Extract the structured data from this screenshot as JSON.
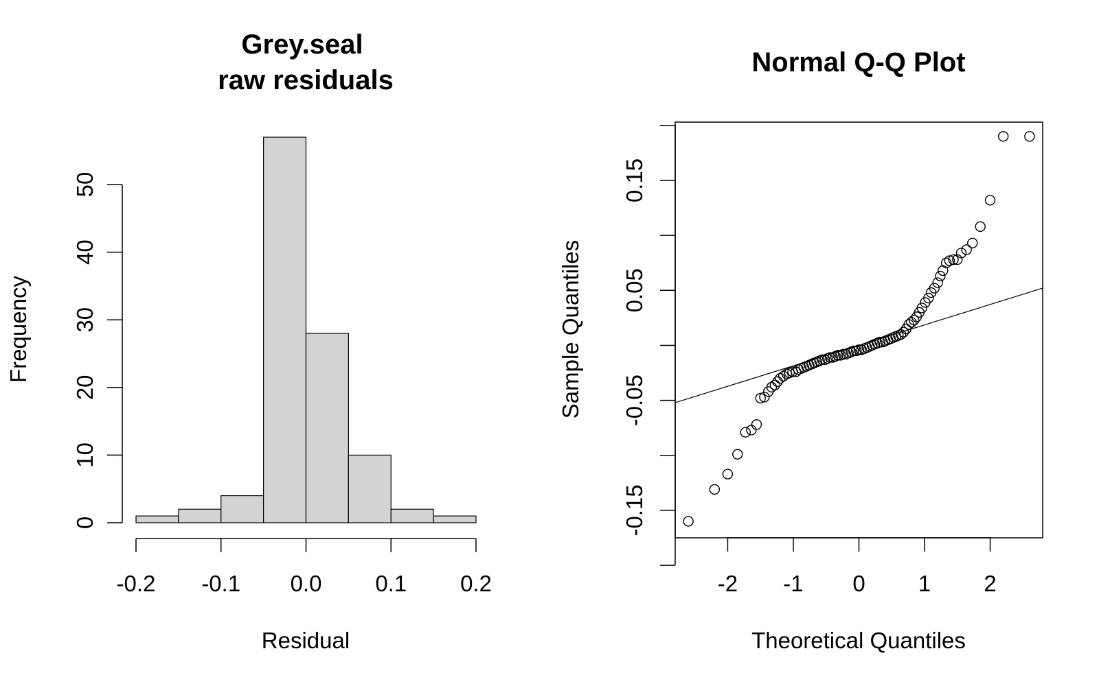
{
  "chart_data": [
    {
      "type": "bar",
      "title_lines": [
        "Grey.seal",
        "raw residuals"
      ],
      "xlabel": "Residual",
      "ylabel": "Frequency",
      "bins": [
        {
          "from": -0.2,
          "to": -0.15,
          "count": 1
        },
        {
          "from": -0.15,
          "to": -0.1,
          "count": 2
        },
        {
          "from": -0.1,
          "to": -0.05,
          "count": 4
        },
        {
          "from": -0.05,
          "to": 0.0,
          "count": 57
        },
        {
          "from": 0.0,
          "to": 0.05,
          "count": 28
        },
        {
          "from": 0.05,
          "to": 0.1,
          "count": 10
        },
        {
          "from": 0.1,
          "to": 0.15,
          "count": 2
        },
        {
          "from": 0.15,
          "to": 0.2,
          "count": 1
        }
      ],
      "xlim": [
        -0.2,
        0.2
      ],
      "ylim": [
        0,
        57
      ],
      "xticks": [
        "-0.2",
        "-0.1",
        "0.0",
        "0.1",
        "0.2"
      ],
      "yticks": [
        "0",
        "10",
        "20",
        "30",
        "40",
        "50"
      ],
      "grid": false
    },
    {
      "type": "scatter",
      "title": "Normal Q-Q Plot",
      "xlabel": "Theoretical Quantiles",
      "ylabel": "Sample Quantiles",
      "xlim": [
        -2.8,
        2.8
      ],
      "ylim": [
        -0.175,
        0.203
      ],
      "xticks": [
        "-2",
        "-1",
        "0",
        "1",
        "2"
      ],
      "yticks": [
        "-0.15",
        "-0.05",
        "0.05",
        "0.15"
      ],
      "grid": false,
      "reference_line": {
        "intercept": 0.0,
        "slope": 0.0186
      },
      "points": {
        "x": [
          -2.6,
          -2.2,
          -2.0,
          -1.85,
          -1.73,
          -1.64,
          -1.56,
          -1.5,
          -1.44,
          -1.38,
          -1.33,
          -1.28,
          -1.24,
          -1.2,
          -1.15,
          -1.1,
          -1.06,
          -1.01,
          -0.96,
          -0.92,
          -0.88,
          -0.84,
          -0.8,
          -0.76,
          -0.72,
          -0.68,
          -0.64,
          -0.6,
          -0.56,
          -0.52,
          -0.48,
          -0.44,
          -0.4,
          -0.36,
          -0.32,
          -0.28,
          -0.24,
          -0.2,
          -0.16,
          -0.12,
          -0.08,
          -0.04,
          0.0,
          0.04,
          0.08,
          0.12,
          0.16,
          0.2,
          0.24,
          0.28,
          0.32,
          0.36,
          0.4,
          0.44,
          0.48,
          0.52,
          0.56,
          0.6,
          0.64,
          0.68,
          0.72,
          0.76,
          0.8,
          0.84,
          0.88,
          0.92,
          0.96,
          1.01,
          1.06,
          1.1,
          1.15,
          1.2,
          1.24,
          1.28,
          1.33,
          1.38,
          1.44,
          1.5,
          1.56,
          1.64,
          1.73,
          1.85,
          2.0,
          2.2,
          2.6
        ],
        "y": [
          -0.16,
          -0.131,
          -0.117,
          -0.099,
          -0.079,
          -0.077,
          -0.072,
          -0.048,
          -0.047,
          -0.042,
          -0.038,
          -0.036,
          -0.033,
          -0.03,
          -0.028,
          -0.026,
          -0.025,
          -0.024,
          -0.024,
          -0.022,
          -0.021,
          -0.02,
          -0.019,
          -0.018,
          -0.017,
          -0.016,
          -0.015,
          -0.014,
          -0.013,
          -0.013,
          -0.012,
          -0.011,
          -0.011,
          -0.01,
          -0.009,
          -0.009,
          -0.008,
          -0.008,
          -0.007,
          -0.006,
          -0.005,
          -0.005,
          -0.004,
          -0.004,
          -0.003,
          -0.002,
          -0.001,
          0.0,
          0.001,
          0.002,
          0.003,
          0.003,
          0.004,
          0.005,
          0.006,
          0.007,
          0.008,
          0.009,
          0.01,
          0.012,
          0.015,
          0.019,
          0.021,
          0.023,
          0.026,
          0.03,
          0.034,
          0.039,
          0.043,
          0.048,
          0.052,
          0.057,
          0.063,
          0.068,
          0.075,
          0.077,
          0.078,
          0.078,
          0.084,
          0.087,
          0.093,
          0.108,
          0.132,
          0.19,
          0.19
        ]
      }
    }
  ]
}
